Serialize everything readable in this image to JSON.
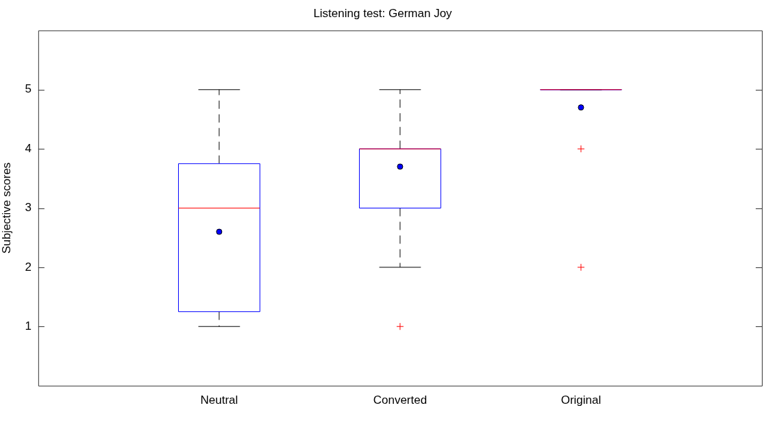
{
  "chart_data": {
    "type": "box",
    "title": "Listening test: German Joy",
    "ylabel": "Subjective scores",
    "categories": [
      "Neutral",
      "Converted",
      "Original"
    ],
    "color": "#0000ff",
    "boxes": [
      {
        "low": 1,
        "q1": 1.25,
        "median": 3,
        "q3": 3.75,
        "high": 5,
        "mean": 2.6
      },
      {
        "low": 2,
        "q1": 3,
        "median": 4,
        "q3": 4,
        "high": 5,
        "mean": 3.7,
        "outliers": [
          1
        ]
      },
      {
        "low": 5,
        "q1": 5,
        "median": 5,
        "q3": 5,
        "high": 5,
        "mean": 4.7,
        "outliers": [
          4,
          2
        ]
      }
    ],
    "ylim": [
      0,
      6
    ],
    "yticks": [
      1,
      2,
      3,
      4,
      5
    ],
    "grid": false,
    "legend": false
  }
}
